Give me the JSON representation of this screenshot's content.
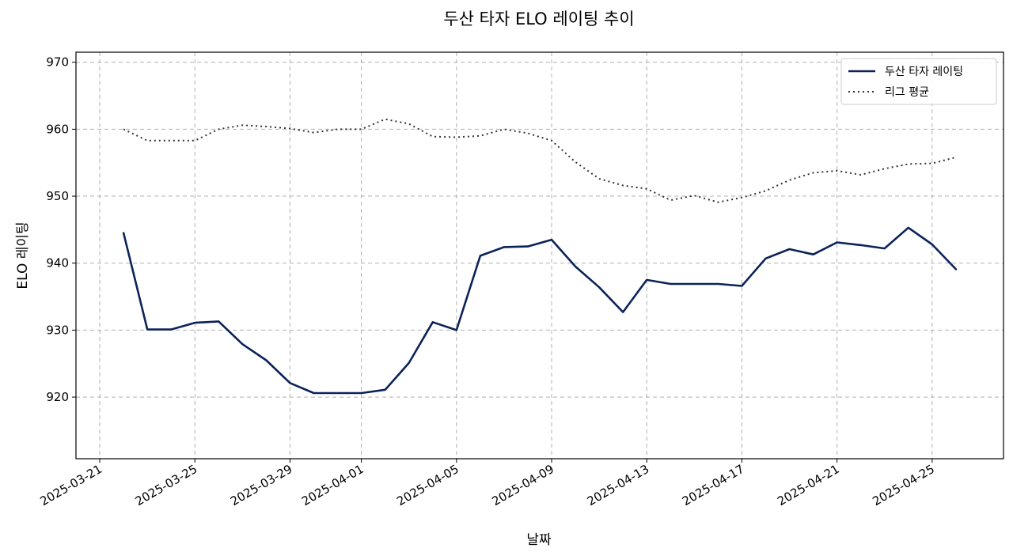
{
  "chart_data": {
    "type": "line",
    "title": "두산 타자 ELO 레이팅 추이",
    "xlabel": "날짜",
    "ylabel": "ELO 레이팅",
    "xlim": [
      "2025-03-20",
      "2025-04-28"
    ],
    "ylim": [
      910.8,
      971.5
    ],
    "grid": true,
    "legend_position": "top-right",
    "x_ticks": [
      "2025-03-21",
      "2025-03-25",
      "2025-03-29",
      "2025-04-01",
      "2025-04-05",
      "2025-04-09",
      "2025-04-13",
      "2025-04-17",
      "2025-04-21",
      "2025-04-25"
    ],
    "y_ticks": [
      920,
      930,
      940,
      950,
      960,
      970
    ],
    "x": [
      "2025-03-22",
      "2025-03-23",
      "2025-03-24",
      "2025-03-25",
      "2025-03-26",
      "2025-03-27",
      "2025-03-28",
      "2025-03-29",
      "2025-03-30",
      "2025-03-31",
      "2025-04-01",
      "2025-04-02",
      "2025-04-03",
      "2025-04-04",
      "2025-04-05",
      "2025-04-06",
      "2025-04-07",
      "2025-04-08",
      "2025-04-09",
      "2025-04-10",
      "2025-04-11",
      "2025-04-12",
      "2025-04-13",
      "2025-04-14",
      "2025-04-15",
      "2025-04-16",
      "2025-04-17",
      "2025-04-18",
      "2025-04-19",
      "2025-04-20",
      "2025-04-21",
      "2025-04-22",
      "2025-04-23",
      "2025-04-24",
      "2025-04-25",
      "2025-04-26"
    ],
    "series": [
      {
        "name": "두산 타자 레이팅",
        "color": "#0b2358",
        "style": "solid",
        "values": [
          944.5,
          930.1,
          930.1,
          931.1,
          931.3,
          927.9,
          925.5,
          922.1,
          920.6,
          920.6,
          920.6,
          921.1,
          925.1,
          931.2,
          930.0,
          941.1,
          942.4,
          942.5,
          943.5,
          939.5,
          936.4,
          932.7,
          937.5,
          936.9,
          936.9,
          936.9,
          936.6,
          940.7,
          942.1,
          941.3,
          943.1,
          942.7,
          942.2,
          945.3,
          942.8,
          939.1
        ]
      },
      {
        "name": "리그 평균",
        "color": "#333333",
        "style": "dotted",
        "values": [
          960.0,
          958.3,
          958.3,
          958.3,
          960.0,
          960.6,
          960.4,
          960.1,
          959.5,
          960.0,
          960.0,
          961.5,
          960.8,
          958.9,
          958.8,
          959.0,
          960.0,
          959.4,
          958.3,
          955.1,
          952.6,
          951.6,
          951.1,
          949.4,
          950.1,
          949.1,
          949.8,
          950.8,
          952.4,
          953.5,
          953.8,
          953.2,
          954.1,
          954.8,
          954.9,
          955.8
        ]
      }
    ]
  }
}
